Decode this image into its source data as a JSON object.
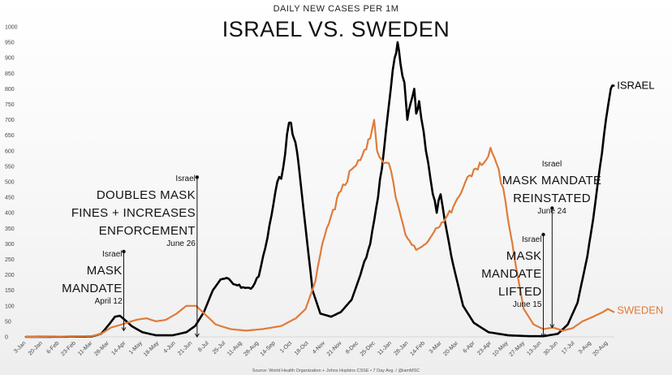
{
  "chart_data": {
    "type": "line",
    "subtitle": "DAILY NEW CASES PER 1M",
    "title": "ISRAEL VS. SWEDEN",
    "source": "Source: World Health Organization + Johns Hopkins CSSE • 7 Day Avg. / @iamMSC",
    "ylim": [
      0,
      1000
    ],
    "yticks": [
      0,
      50,
      100,
      150,
      200,
      250,
      300,
      350,
      400,
      450,
      500,
      550,
      600,
      650,
      700,
      750,
      800,
      850,
      900,
      950,
      1000
    ],
    "xticks": [
      "3-Jan",
      "20-Jan",
      "6-Feb",
      "23-Feb",
      "11-Mar",
      "28-Mar",
      "14-Apr",
      "1-May",
      "18-May",
      "4-Jun",
      "21-Jun",
      "8-Jul",
      "25-Jul",
      "11-Aug",
      "28-Aug",
      "14-Sep",
      "1-Oct",
      "18-Oct",
      "4-Nov",
      "21-Nov",
      "8-Dec",
      "25-Dec",
      "11-Jan",
      "28-Jan",
      "14-Feb",
      "3-Mar",
      "20-Mar",
      "6-Apr",
      "23-Apr",
      "10-May",
      "27-May",
      "13-Jun",
      "30-Jun",
      "17-Jul",
      "3-Aug",
      "20-Aug"
    ],
    "grid": false,
    "x_start": "2020-01-03",
    "series": [
      {
        "name": "ISRAEL",
        "color": "#000000",
        "points": [
          [
            "2020-01-03",
            0
          ],
          [
            "2020-03-10",
            1
          ],
          [
            "2020-03-20",
            10
          ],
          [
            "2020-03-28",
            40
          ],
          [
            "2020-04-03",
            65
          ],
          [
            "2020-04-08",
            68
          ],
          [
            "2020-04-13",
            55
          ],
          [
            "2020-04-20",
            35
          ],
          [
            "2020-05-01",
            15
          ],
          [
            "2020-05-15",
            5
          ],
          [
            "2020-06-01",
            5
          ],
          [
            "2020-06-15",
            15
          ],
          [
            "2020-06-24",
            35
          ],
          [
            "2020-07-03",
            80
          ],
          [
            "2020-07-12",
            150
          ],
          [
            "2020-07-20",
            185
          ],
          [
            "2020-07-26",
            190
          ],
          [
            "2020-08-02",
            170
          ],
          [
            "2020-08-12",
            160
          ],
          [
            "2020-08-20",
            155
          ],
          [
            "2020-08-28",
            195
          ],
          [
            "2020-09-06",
            320
          ],
          [
            "2020-09-16",
            500
          ],
          [
            "2020-09-20",
            510
          ],
          [
            "2020-09-28",
            690
          ],
          [
            "2020-09-30",
            690
          ],
          [
            "2020-10-03",
            640
          ],
          [
            "2020-10-06",
            600
          ],
          [
            "2020-10-08",
            550
          ],
          [
            "2020-10-15",
            350
          ],
          [
            "2020-10-22",
            150
          ],
          [
            "2020-10-30",
            75
          ],
          [
            "2020-11-10",
            65
          ],
          [
            "2020-11-20",
            80
          ],
          [
            "2020-12-01",
            120
          ],
          [
            "2020-12-10",
            200
          ],
          [
            "2020-12-20",
            300
          ],
          [
            "2020-12-28",
            450
          ],
          [
            "2021-01-03",
            600
          ],
          [
            "2021-01-10",
            800
          ],
          [
            "2021-01-14",
            900
          ],
          [
            "2021-01-17",
            950
          ],
          [
            "2021-01-20",
            880
          ],
          [
            "2021-01-24",
            820
          ],
          [
            "2021-01-27",
            700
          ],
          [
            "2021-01-30",
            750
          ],
          [
            "2021-02-03",
            800
          ],
          [
            "2021-02-05",
            720
          ],
          [
            "2021-02-08",
            760
          ],
          [
            "2021-02-15",
            600
          ],
          [
            "2021-02-22",
            460
          ],
          [
            "2021-02-26",
            400
          ],
          [
            "2021-03-02",
            460
          ],
          [
            "2021-03-06",
            380
          ],
          [
            "2021-03-15",
            230
          ],
          [
            "2021-03-25",
            100
          ],
          [
            "2021-04-05",
            45
          ],
          [
            "2021-04-20",
            15
          ],
          [
            "2021-05-10",
            5
          ],
          [
            "2021-06-01",
            2
          ],
          [
            "2021-06-15",
            2
          ],
          [
            "2021-06-30",
            10
          ],
          [
            "2021-07-10",
            40
          ],
          [
            "2021-07-20",
            110
          ],
          [
            "2021-07-30",
            260
          ],
          [
            "2021-08-05",
            380
          ],
          [
            "2021-08-12",
            550
          ],
          [
            "2021-08-18",
            700
          ],
          [
            "2021-08-23",
            800
          ],
          [
            "2021-08-26",
            810
          ]
        ]
      },
      {
        "name": "SWEDEN",
        "color": "#E07B39",
        "points": [
          [
            "2020-01-03",
            0
          ],
          [
            "2020-03-10",
            2
          ],
          [
            "2020-03-20",
            10
          ],
          [
            "2020-03-30",
            30
          ],
          [
            "2020-04-10",
            40
          ],
          [
            "2020-04-25",
            55
          ],
          [
            "2020-05-05",
            60
          ],
          [
            "2020-05-15",
            50
          ],
          [
            "2020-05-25",
            55
          ],
          [
            "2020-06-05",
            75
          ],
          [
            "2020-06-15",
            100
          ],
          [
            "2020-06-25",
            100
          ],
          [
            "2020-07-05",
            70
          ],
          [
            "2020-07-15",
            40
          ],
          [
            "2020-07-30",
            25
          ],
          [
            "2020-08-15",
            20
          ],
          [
            "2020-09-01",
            25
          ],
          [
            "2020-09-20",
            35
          ],
          [
            "2020-10-05",
            60
          ],
          [
            "2020-10-15",
            90
          ],
          [
            "2020-10-25",
            180
          ],
          [
            "2020-11-01",
            300
          ],
          [
            "2020-11-10",
            390
          ],
          [
            "2020-11-20",
            470
          ],
          [
            "2020-12-01",
            540
          ],
          [
            "2020-12-10",
            570
          ],
          [
            "2020-12-20",
            640
          ],
          [
            "2020-12-24",
            700
          ],
          [
            "2020-12-27",
            600
          ],
          [
            "2021-01-03",
            560
          ],
          [
            "2021-01-08",
            560
          ],
          [
            "2021-01-15",
            450
          ],
          [
            "2021-01-25",
            330
          ],
          [
            "2021-02-05",
            280
          ],
          [
            "2021-02-15",
            300
          ],
          [
            "2021-02-25",
            350
          ],
          [
            "2021-03-05",
            370
          ],
          [
            "2021-03-15",
            420
          ],
          [
            "2021-03-25",
            480
          ],
          [
            "2021-04-05",
            540
          ],
          [
            "2021-04-15",
            560
          ],
          [
            "2021-04-22",
            610
          ],
          [
            "2021-04-28",
            560
          ],
          [
            "2021-05-05",
            480
          ],
          [
            "2021-05-12",
            340
          ],
          [
            "2021-05-19",
            210
          ],
          [
            "2021-05-26",
            90
          ],
          [
            "2021-06-05",
            40
          ],
          [
            "2021-06-15",
            25
          ],
          [
            "2021-06-25",
            30
          ],
          [
            "2021-07-05",
            20
          ],
          [
            "2021-07-15",
            28
          ],
          [
            "2021-07-25",
            50
          ],
          [
            "2021-08-05",
            65
          ],
          [
            "2021-08-15",
            80
          ],
          [
            "2021-08-20",
            90
          ],
          [
            "2021-08-26",
            80
          ]
        ]
      }
    ],
    "annotations": [
      {
        "id": "mask-mandate",
        "date": "2020-04-12",
        "top": 275,
        "bottom": 20,
        "lines": [
          {
            "text": "Israel",
            "size": "small"
          },
          {
            "text": "MASK",
            "size": "big"
          },
          {
            "text": "MANDATE",
            "size": "big"
          },
          {
            "text": "April 12",
            "size": "small"
          }
        ]
      },
      {
        "id": "doubles-mask-fines",
        "date": "2020-06-26",
        "top": 515,
        "bottom": 0,
        "lines": [
          {
            "text": "Israel",
            "size": "small"
          },
          {
            "text": "DOUBLES MASK",
            "size": "big"
          },
          {
            "text": "FINES + INCREASES",
            "size": "big"
          },
          {
            "text": "ENFORCEMENT",
            "size": "big"
          },
          {
            "text": "June 26",
            "size": "small"
          }
        ]
      },
      {
        "id": "mask-mandate-lifted",
        "date": "2021-06-15",
        "top": 330,
        "bottom": 0,
        "lines": [
          {
            "text": "Israel",
            "size": "small"
          },
          {
            "text": "MASK",
            "size": "big"
          },
          {
            "text": "MANDATE",
            "size": "big"
          },
          {
            "text": "LIFTED",
            "size": "big"
          },
          {
            "text": "June 15",
            "size": "small"
          }
        ]
      },
      {
        "id": "mask-mandate-reinstated",
        "date": "2021-06-24",
        "top": 415,
        "bottom": 30,
        "lines": [
          {
            "text": "Israel",
            "size": "small"
          },
          {
            "text": "MASK MANDATE",
            "size": "big"
          },
          {
            "text": "REINSTATED",
            "size": "big"
          },
          {
            "text": "June 24",
            "size": "small"
          }
        ]
      }
    ]
  }
}
